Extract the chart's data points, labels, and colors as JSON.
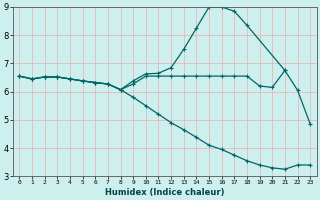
{
  "xlabel": "Humidex (Indice chaleur)",
  "bg_color": "#cdf0ee",
  "grid_color": "#e8b8b8",
  "line_color": "#006666",
  "xlim": [
    -0.5,
    23.5
  ],
  "ylim": [
    3,
    9
  ],
  "xticks": [
    0,
    1,
    2,
    3,
    4,
    5,
    6,
    7,
    8,
    9,
    10,
    11,
    12,
    13,
    14,
    15,
    16,
    17,
    18,
    19,
    20,
    21,
    22,
    23
  ],
  "yticks": [
    3,
    4,
    5,
    6,
    7,
    8,
    9
  ],
  "line1_x": [
    0,
    1,
    2,
    3,
    4,
    5,
    6,
    7,
    8,
    9,
    10,
    11,
    12,
    13,
    14,
    15,
    16,
    17,
    18,
    21,
    22,
    23
  ],
  "line1_y": [
    6.55,
    6.45,
    6.52,
    6.52,
    6.45,
    6.38,
    6.32,
    6.27,
    6.07,
    6.38,
    6.63,
    6.65,
    6.85,
    7.5,
    8.25,
    9.0,
    9.0,
    8.85,
    8.35,
    6.75,
    6.05,
    4.85
  ],
  "line2_x": [
    0,
    1,
    2,
    3,
    4,
    5,
    6,
    7,
    8,
    9,
    10,
    11,
    12,
    13,
    14,
    15,
    16,
    17,
    18,
    19,
    20,
    21
  ],
  "line2_y": [
    6.55,
    6.45,
    6.52,
    6.52,
    6.45,
    6.38,
    6.32,
    6.27,
    6.07,
    6.27,
    6.55,
    6.55,
    6.55,
    6.55,
    6.55,
    6.55,
    6.55,
    6.55,
    6.55,
    6.2,
    6.15,
    6.75
  ],
  "line3_x": [
    0,
    1,
    2,
    3,
    4,
    5,
    6,
    7,
    8,
    9,
    10,
    11,
    12,
    13,
    14,
    15,
    16,
    17,
    18,
    19,
    20,
    21,
    22,
    23
  ],
  "line3_y": [
    6.55,
    6.45,
    6.52,
    6.52,
    6.45,
    6.38,
    6.32,
    6.27,
    6.07,
    5.8,
    5.5,
    5.2,
    4.9,
    4.65,
    4.38,
    4.1,
    3.95,
    3.75,
    3.55,
    3.4,
    3.3,
    3.25,
    3.4,
    3.4
  ]
}
